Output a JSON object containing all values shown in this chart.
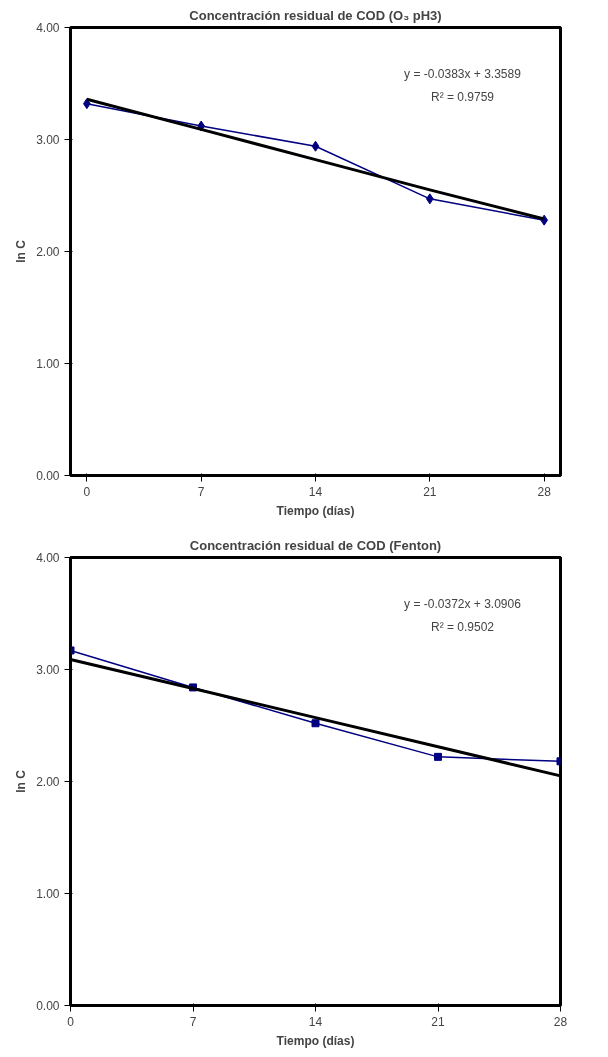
{
  "chart_data": [
    {
      "type": "line",
      "title": "Concentración residual de COD (O₃ pH3)",
      "xlabel": "Tiempo (días)",
      "ylabel": "ln C",
      "annotations": [
        "y = -0.0383x + 3.3589",
        "R² = 0.9759"
      ],
      "x": [
        0,
        7,
        14,
        21,
        28
      ],
      "series": [
        {
          "color": "#000080",
          "values": [
            3.32,
            3.12,
            2.94,
            2.47,
            2.28
          ],
          "marker": "diamond"
        },
        {
          "type": "line",
          "color": "#000000",
          "values": [
            3.36,
            3.09,
            2.82,
            2.55,
            2.29
          ],
          "marker": "none"
        }
      ],
      "xlim": [
        -1,
        29
      ],
      "ylim": [
        0,
        4
      ],
      "xticks": [
        0,
        7,
        14,
        21,
        28
      ],
      "yticks": [
        {
          "value": 0,
          "label": "0.00"
        },
        {
          "value": 1,
          "label": "1.00"
        },
        {
          "value": 2,
          "label": "2.00"
        },
        {
          "value": 3,
          "label": "3.00"
        },
        {
          "value": 4,
          "label": "4.00"
        }
      ],
      "grid": false
    },
    {
      "type": "line",
      "title": "Concentración residual de COD (Fenton)",
      "xlabel": "Tiempo (días)",
      "ylabel": "ln C",
      "annotations": [
        "y = -0.0372x + 3.0906",
        "R² = 0.9502"
      ],
      "x": [
        0,
        7,
        14,
        21,
        28
      ],
      "series": [
        {
          "color": "#000080",
          "values": [
            3.17,
            2.84,
            2.52,
            2.22,
            2.18
          ],
          "marker": "square"
        },
        {
          "type": "line",
          "color": "#000000",
          "values": [
            3.09,
            2.83,
            2.57,
            2.31,
            2.05
          ],
          "marker": "none"
        }
      ],
      "xlim": [
        0,
        28
      ],
      "ylim": [
        0,
        4
      ],
      "xticks": [
        0,
        7,
        14,
        21,
        28
      ],
      "yticks": [
        {
          "value": 0,
          "label": "0.00"
        },
        {
          "value": 1,
          "label": "1.00"
        },
        {
          "value": 2,
          "label": "2.00"
        },
        {
          "value": 3,
          "label": "3.00"
        },
        {
          "value": 4,
          "label": "4.00"
        }
      ],
      "grid": false
    }
  ]
}
